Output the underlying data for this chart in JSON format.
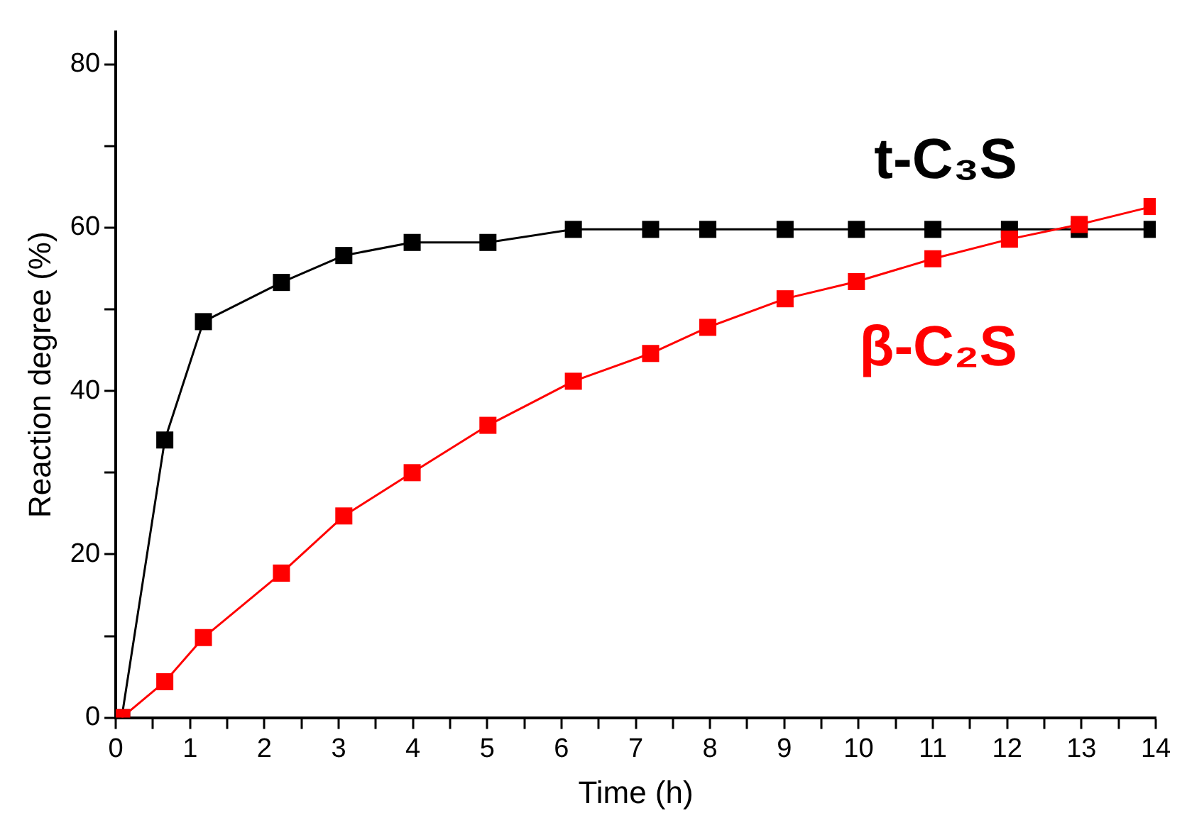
{
  "chart_data": {
    "type": "line",
    "xlabel": "Time (h)",
    "ylabel": "Reaction degree (%)",
    "xlim": [
      0,
      14
    ],
    "ylim": [
      0,
      84
    ],
    "xticks": [
      0,
      {
        "value": 0.5,
        "label": null
      },
      1,
      {
        "value": 1.5,
        "label": null
      },
      2,
      {
        "value": 2.5,
        "label": null
      },
      3,
      {
        "value": 3.5,
        "label": null
      },
      4,
      {
        "value": 4.5,
        "label": null
      },
      5,
      {
        "value": 5.5,
        "label": null
      },
      6,
      {
        "value": 6.5,
        "label": null
      },
      7,
      {
        "value": 7.5,
        "label": null
      },
      8,
      {
        "value": 8.5,
        "label": null
      },
      9,
      {
        "value": 9.5,
        "label": null
      },
      10,
      {
        "value": 10.5,
        "label": null
      },
      11,
      {
        "value": 11.5,
        "label": null
      },
      12,
      {
        "value": 12.5,
        "label": null
      },
      13,
      {
        "value": 13.5,
        "label": null
      },
      14
    ],
    "yticks": [
      0,
      {
        "value": 10,
        "label": null
      },
      20,
      {
        "value": 30,
        "label": null
      },
      40,
      {
        "value": 50,
        "label": null
      },
      60,
      {
        "value": 70,
        "label": null
      },
      80
    ],
    "grid": false,
    "legend": false,
    "marker": "square",
    "line_style": "solid",
    "series": [
      {
        "name": "t-C₃S",
        "color": "#000000",
        "x": [
          0.08,
          0.66,
          1.18,
          2.23,
          3.07,
          3.99,
          5.01,
          6.16,
          7.2,
          7.97,
          9.01,
          9.97,
          11.0,
          12.03,
          12.97,
          13.95
        ],
        "values": [
          0,
          34.0,
          48.5,
          53.3,
          56.6,
          58.2,
          58.2,
          59.8,
          59.8,
          59.8,
          59.8,
          59.8,
          59.8,
          59.8,
          59.8,
          59.8
        ]
      },
      {
        "name": "β-C₂S",
        "color": "#ff0000",
        "x": [
          0.08,
          0.66,
          1.18,
          2.23,
          3.07,
          3.99,
          5.01,
          6.16,
          7.2,
          7.97,
          9.01,
          9.97,
          11.0,
          12.03,
          12.97,
          13.95
        ],
        "values": [
          0,
          4.4,
          9.8,
          17.7,
          24.7,
          30.0,
          35.8,
          41.2,
          44.6,
          47.8,
          51.3,
          53.4,
          56.2,
          58.6,
          60.4,
          62.6
        ]
      }
    ]
  }
}
